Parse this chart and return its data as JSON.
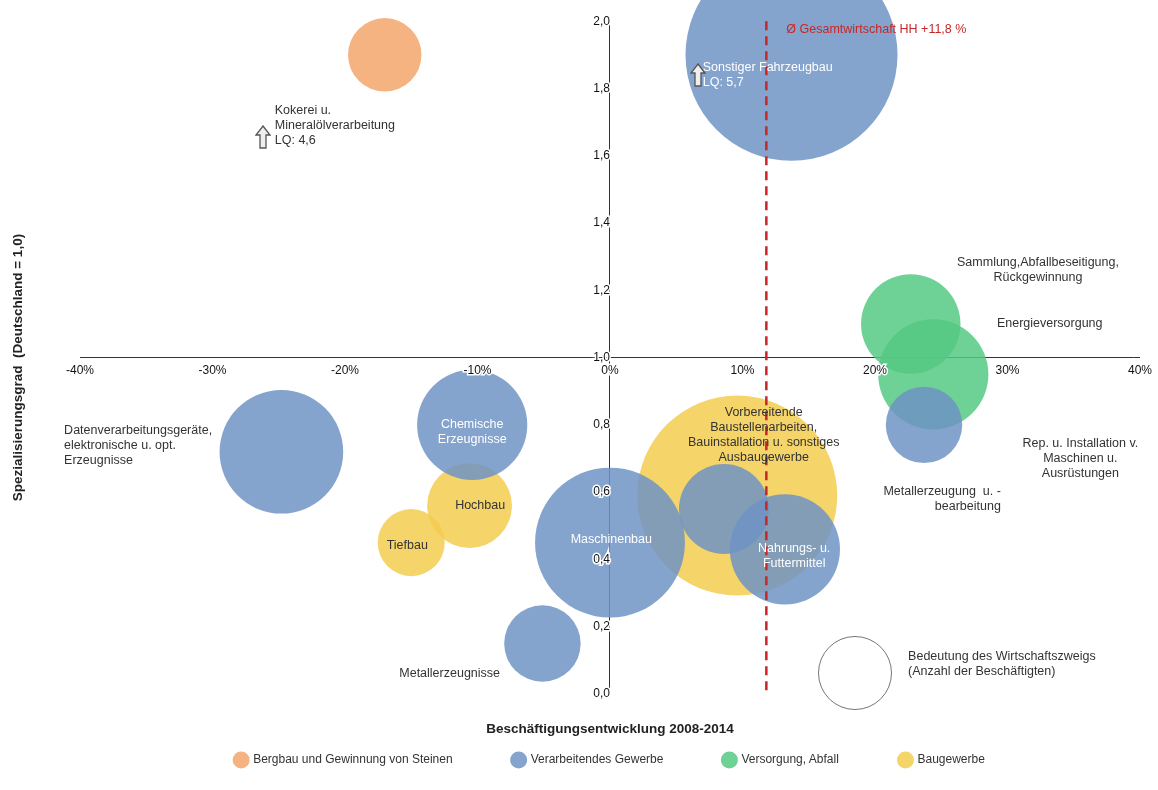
{
  "chart_data": {
    "type": "bubble",
    "xlabel": "Beschäftigungsentwicklung 2008-2014",
    "ylabel": "Spezialisierungsgrad  (Deutschland = 1,0)",
    "xlim": [
      -40,
      40
    ],
    "xticks": [
      {
        "value": -40,
        "label": "-40%"
      },
      {
        "value": -30,
        "label": "-30%"
      },
      {
        "value": -20,
        "label": "-20%"
      },
      {
        "value": -10,
        "label": "-10%"
      },
      {
        "value": 0,
        "label": "0%"
      },
      {
        "value": 10,
        "label": "10%"
      },
      {
        "value": 20,
        "label": "20%"
      },
      {
        "value": 30,
        "label": "30%"
      },
      {
        "value": 40,
        "label": "40%"
      }
    ],
    "ylim": [
      0,
      2
    ],
    "yticks": [
      {
        "value": 0,
        "label": "0,0"
      },
      {
        "value": 0.2,
        "label": "0,2"
      },
      {
        "value": 0.4,
        "label": "0,4"
      },
      {
        "value": 0.6,
        "label": "0,6"
      },
      {
        "value": 0.8,
        "label": "0,8"
      },
      {
        "value": 1,
        "label": "1,0"
      },
      {
        "value": 1.2,
        "label": "1,2"
      },
      {
        "value": 1.4,
        "label": "1,4"
      },
      {
        "value": 1.6,
        "label": "1,6"
      },
      {
        "value": 1.8,
        "label": "1,8"
      },
      {
        "value": 2,
        "label": "2,0"
      }
    ],
    "grid": false,
    "legend": "bottom",
    "series": [
      {
        "name": "Bergbau und Gewinnung von Steinen",
        "color": "#f4a66c",
        "x": [
          -17
        ],
        "values": [
          1.9
        ],
        "sizes": [
          0.12
        ]
      },
      {
        "name": "Verarbeitendes Gewerbe",
        "color": "#6f93c4",
        "x": [
          13.7,
          23.7,
          -24.8,
          -10.4,
          0,
          8.6,
          13.2,
          -5.1
        ],
        "values": [
          1.9,
          0.8,
          0.72,
          0.8,
          0.45,
          0.55,
          0.43,
          0.15
        ],
        "sizes": [
          1,
          0.13,
          0.34,
          0.27,
          0.5,
          0.18,
          0.27,
          0.13
        ]
      },
      {
        "name": "Versorgung, Abfall",
        "color": "#55c983",
        "x": [
          22.7,
          24.4
        ],
        "values": [
          1.1,
          0.95
        ],
        "sizes": [
          0.22,
          0.27
        ]
      },
      {
        "name": "Baugewerbe",
        "color": "#f3cd50",
        "x": [
          -10.6,
          -15,
          9.6
        ],
        "values": [
          0.56,
          0.45,
          0.59
        ],
        "sizes": [
          0.16,
          0.1,
          0.89
        ]
      }
    ],
    "ref_lines": [
      {
        "axis": "x",
        "value": 11.8,
        "label": "Ø Gesamtwirtschaft HH +11,8 %",
        "color": "#c62828",
        "line_style": "dashed"
      }
    ],
    "annotations": [
      "Kokerei u.\nMineralölverarbeitung\nLQ: 4,6",
      "Sonstiger Fahrzeugbau\nLQ: 5,7",
      "Sammlung,Abfallbeseitigung,\nRückgewinnung",
      "Energieversorgung",
      "Rep. u. Installation v.\nMaschinen u.\nAusrüstungen",
      "Metallerzeugung  u. -\nbearbeitung",
      "Datenverarbeitungsgeräte,\nelektronische u. opt.\nErzeugnisse",
      "Chemische\nErzeugnisse",
      "Hochbau",
      "Tiefbau",
      "Maschinenbau",
      "Vorbereitende\nBaustellenarbeiten,\nBauinstallation u. sonstiges\nAusbaugewerbe",
      "Nahrungs- u.\nFuttermittel",
      "Metallerzeugnisse",
      "Bedeutung des Wirtschaftszweigs\n(Anzahl der Beschäftigten)"
    ]
  }
}
